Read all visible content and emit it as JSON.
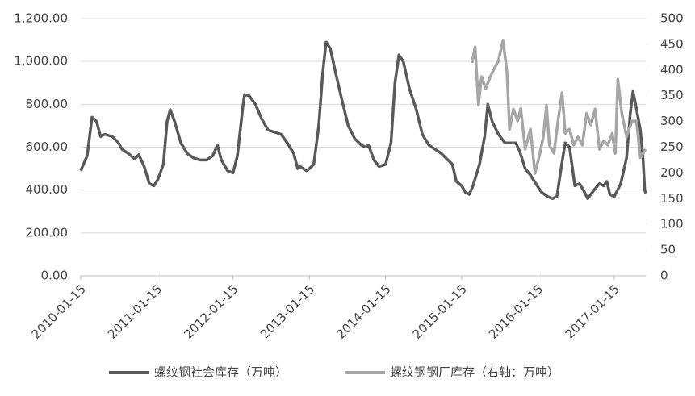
{
  "chart_data": {
    "type": "line",
    "xlim": [
      "2010-01-15",
      "2017-06-15"
    ],
    "xticks": [
      "2010-01-15",
      "2011-01-15",
      "2012-01-15",
      "2013-01-15",
      "2014-01-15",
      "2015-01-15",
      "2016-01-15",
      "2017-01-15"
    ],
    "ylim": [
      0,
      1200
    ],
    "yticks": [
      {
        "value": 0,
        "label": "0.00"
      },
      {
        "value": 200,
        "label": "200.00"
      },
      {
        "value": 400,
        "label": "400.00"
      },
      {
        "value": 600,
        "label": "600.00"
      },
      {
        "value": 800,
        "label": "800.00"
      },
      {
        "value": 1000,
        "label": "1,000.00"
      },
      {
        "value": 1200,
        "label": "1,200.00"
      }
    ],
    "y2lim": [
      0,
      500
    ],
    "y2ticks": [
      0,
      50,
      100,
      150,
      200,
      250,
      300,
      350,
      400,
      450,
      500
    ],
    "grid": true,
    "legend": "bottom",
    "series": [
      {
        "name": "螺纹钢社会库存（万吨）",
        "color": "#595959",
        "x": [
          "2010-01-15",
          "2010-02-15",
          "2010-03-10",
          "2010-04-01",
          "2010-04-20",
          "2010-05-10",
          "2010-06-15",
          "2010-07-15",
          "2010-08-01",
          "2010-09-01",
          "2010-10-01",
          "2010-10-20",
          "2010-11-15",
          "2010-12-10",
          "2011-01-01",
          "2011-01-20",
          "2011-02-15",
          "2011-03-05",
          "2011-03-20",
          "2011-04-10",
          "2011-05-10",
          "2011-06-10",
          "2011-07-10",
          "2011-08-10",
          "2011-09-10",
          "2011-10-10",
          "2011-11-01",
          "2011-11-20",
          "2011-12-20",
          "2012-01-15",
          "2012-02-05",
          "2012-03-01",
          "2012-03-10",
          "2012-04-01",
          "2012-05-01",
          "2012-06-01",
          "2012-07-01",
          "2012-08-01",
          "2012-09-01",
          "2012-10-01",
          "2012-11-01",
          "2012-11-20",
          "2012-12-01",
          "2013-01-01",
          "2013-01-15",
          "2013-02-05",
          "2013-03-01",
          "2013-03-20",
          "2013-04-05",
          "2013-04-25",
          "2013-05-20",
          "2013-06-20",
          "2013-07-20",
          "2013-08-20",
          "2013-09-20",
          "2013-10-10",
          "2013-10-25",
          "2013-11-20",
          "2013-12-15",
          "2014-01-15",
          "2014-02-10",
          "2014-03-01",
          "2014-03-20",
          "2014-04-10",
          "2014-05-10",
          "2014-06-10",
          "2014-07-10",
          "2014-08-10",
          "2014-09-10",
          "2014-10-10",
          "2014-11-10",
          "2014-12-01",
          "2014-12-20",
          "2015-01-15",
          "2015-02-01",
          "2015-02-20",
          "2015-03-10",
          "2015-04-10",
          "2015-05-05",
          "2015-05-20",
          "2015-06-10",
          "2015-07-10",
          "2015-08-10",
          "2015-09-10",
          "2015-10-01",
          "2015-10-20",
          "2015-11-15",
          "2015-12-10",
          "2016-01-05",
          "2016-02-01",
          "2016-03-01",
          "2016-03-25",
          "2016-04-15",
          "2016-05-10",
          "2016-05-25",
          "2016-06-15",
          "2016-07-10",
          "2016-08-01",
          "2016-08-20",
          "2016-09-10",
          "2016-10-10",
          "2016-11-05",
          "2016-11-25",
          "2016-12-10",
          "2016-12-25",
          "2017-01-15",
          "2017-02-15",
          "2017-03-15",
          "2017-04-01",
          "2017-04-15",
          "2017-05-01",
          "2017-05-20",
          "2017-06-01",
          "2017-06-10",
          "2017-06-15"
        ],
        "values": [
          490,
          560,
          740,
          720,
          650,
          660,
          650,
          620,
          590,
          570,
          545,
          565,
          510,
          430,
          420,
          450,
          520,
          720,
          775,
          720,
          620,
          570,
          550,
          540,
          540,
          560,
          610,
          540,
          490,
          480,
          560,
          780,
          845,
          840,
          800,
          730,
          680,
          670,
          660,
          620,
          570,
          500,
          510,
          490,
          500,
          520,
          700,
          950,
          1090,
          1060,
          950,
          820,
          700,
          640,
          610,
          600,
          610,
          540,
          510,
          520,
          620,
          900,
          1030,
          1000,
          870,
          780,
          660,
          610,
          590,
          570,
          540,
          520,
          440,
          420,
          390,
          380,
          420,
          520,
          650,
          800,
          720,
          660,
          620,
          620,
          620,
          580,
          500,
          470,
          430,
          390,
          370,
          360,
          370,
          530,
          620,
          600,
          420,
          430,
          400,
          360,
          400,
          430,
          420,
          440,
          380,
          370,
          430,
          550,
          750,
          860,
          780,
          680,
          560,
          400,
          385
        ]
      },
      {
        "name": "螺纹钢钢厂库存（右轴：万吨）",
        "color": "#a6a6a6",
        "axis": "y2",
        "x": [
          "2015-03-05",
          "2015-03-20",
          "2015-04-05",
          "2015-04-20",
          "2015-05-10",
          "2015-06-01",
          "2015-06-20",
          "2015-07-10",
          "2015-08-01",
          "2015-08-20",
          "2015-09-01",
          "2015-09-20",
          "2015-10-10",
          "2015-10-25",
          "2015-11-15",
          "2015-12-10",
          "2016-01-01",
          "2016-01-20",
          "2016-02-10",
          "2016-02-25",
          "2016-03-10",
          "2016-04-01",
          "2016-04-20",
          "2016-05-10",
          "2016-05-25",
          "2016-06-15",
          "2016-07-05",
          "2016-07-25",
          "2016-08-15",
          "2016-09-05",
          "2016-09-25",
          "2016-10-15",
          "2016-11-05",
          "2016-11-25",
          "2016-12-15",
          "2017-01-05",
          "2017-01-20",
          "2017-02-01",
          "2017-02-20",
          "2017-03-15",
          "2017-04-10",
          "2017-05-01",
          "2017-05-20",
          "2017-06-15"
        ],
        "values": [
          414,
          445,
          332,
          387,
          364,
          387,
          403,
          418,
          458,
          395,
          285,
          324,
          301,
          325,
          246,
          285,
          199,
          230,
          270,
          332,
          254,
          238,
          301,
          356,
          277,
          285,
          254,
          270,
          254,
          316,
          293,
          324,
          246,
          262,
          254,
          277,
          238,
          382,
          316,
          270,
          301,
          301,
          230,
          246
        ]
      }
    ]
  }
}
